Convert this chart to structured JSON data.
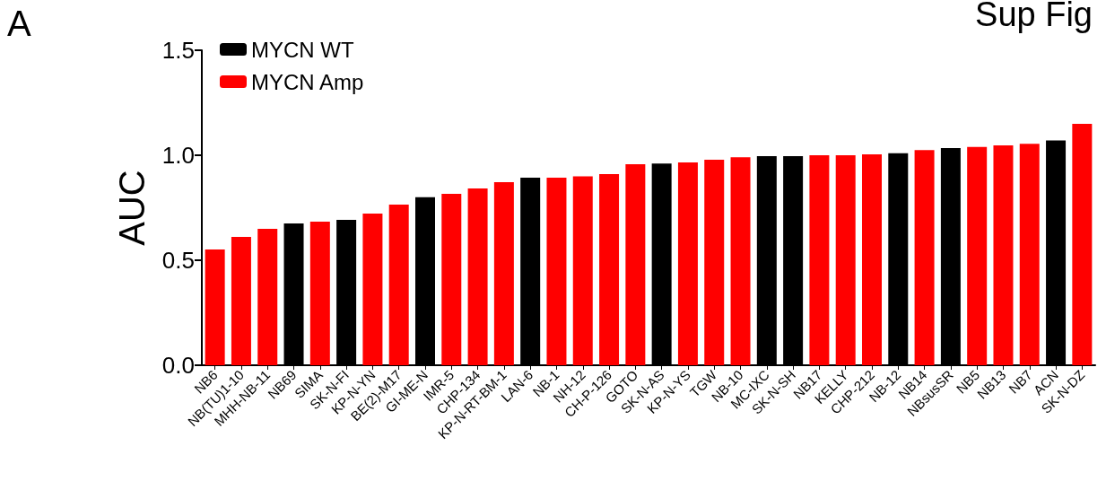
{
  "chart_data": {
    "type": "bar",
    "title": "Sup Fig",
    "ylabel": "AUC",
    "annotations": [
      "A"
    ],
    "categories": [
      "NB6",
      "NB(TU)1-10",
      "MHH-NB-11",
      "NB69",
      "SIMA",
      "SK-N-FI",
      "KP-N-YN",
      "BE(2)-M17",
      "GI-ME-N",
      "IMR-5",
      "CHP-134",
      "KP-N-RT-BM-1",
      "LAN-6",
      "NB-1",
      "NH-12",
      "CH-P-126",
      "GOTO",
      "SK-N-AS",
      "KP-N-YS",
      "TGW",
      "NB-10",
      "MC-IXC",
      "SK-N-SH",
      "NB17",
      "KELLY",
      "CHP-212",
      "NB-12",
      "NB14",
      "NBsusSR",
      "NB5",
      "NB13",
      "NB7",
      "ACN",
      "SK-N-DZ"
    ],
    "series": [
      {
        "name": "MYCN WT",
        "color": "#000000",
        "values": [
          null,
          null,
          null,
          0.675,
          null,
          0.692,
          null,
          null,
          0.8,
          null,
          null,
          null,
          0.893,
          null,
          null,
          null,
          null,
          0.96,
          null,
          null,
          null,
          0.996,
          0.996,
          null,
          null,
          null,
          1.01,
          null,
          1.034,
          null,
          null,
          null,
          1.07,
          null
        ]
      },
      {
        "name": "MYCN Amp",
        "color": "#ff0000",
        "values": [
          0.551,
          0.611,
          0.65,
          null,
          0.684,
          null,
          0.722,
          0.765,
          null,
          0.816,
          0.842,
          0.872,
          null,
          0.893,
          0.9,
          0.91,
          0.957,
          null,
          0.966,
          0.979,
          0.99,
          null,
          null,
          1.0,
          1.0,
          1.004,
          null,
          1.025,
          null,
          1.04,
          1.047,
          1.055,
          null,
          1.15
        ]
      }
    ],
    "ylim": [
      0,
      1.5
    ],
    "yticks": [
      {
        "value": 0,
        "label": "0.0"
      },
      {
        "value": 0.5,
        "label": "0.5"
      },
      {
        "value": 1,
        "label": "1.0"
      },
      {
        "value": 1.5,
        "label": "1.5"
      }
    ],
    "grid": false,
    "legend": "top left"
  }
}
